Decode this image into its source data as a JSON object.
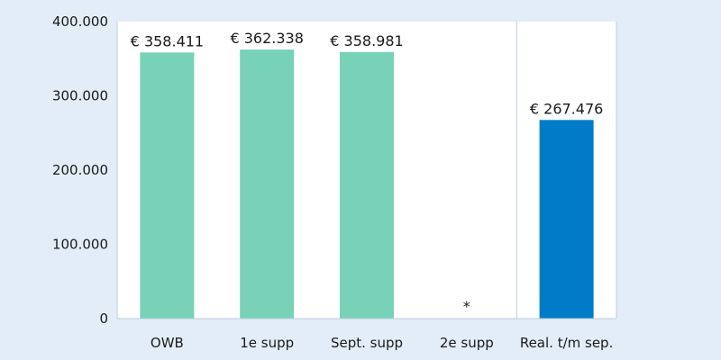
{
  "chart_data": {
    "type": "bar",
    "categories": [
      "OWB",
      "1e supp",
      "Sept. supp",
      "2e supp",
      "Real. t/m sep."
    ],
    "values": [
      358411,
      362338,
      358981,
      null,
      267476
    ],
    "data_labels": [
      "€ 358.411",
      "€ 362.338",
      "€ 358.981",
      "*",
      "€ 267.476"
    ],
    "bar_colors": [
      "#77d2b7",
      "#77d2b7",
      "#77d2b7",
      "#77d2b7",
      "#007bc7"
    ],
    "yticks": [
      0,
      100000,
      200000,
      300000,
      400000
    ],
    "ytick_labels": [
      "0",
      "100.000",
      "200.000",
      "300.000",
      "400.000"
    ],
    "ylim": [
      0,
      400000
    ],
    "title": "",
    "xlabel": "",
    "ylabel": "",
    "grid": false,
    "separator_before_category": 4,
    "colors": {
      "background": "#e2edf7",
      "plot_background": "#ffffff",
      "budget_bar": "#77d2b7",
      "realisation_bar": "#007bc7"
    }
  }
}
